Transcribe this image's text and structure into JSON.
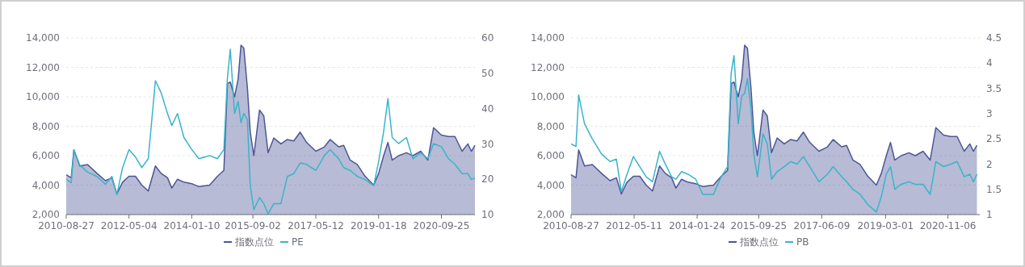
{
  "chart_data": [
    {
      "type": "line",
      "x": [
        "2010-08-27",
        "2010-10-15",
        "2010-11-10",
        "2011-01-07",
        "2011-03-25",
        "2011-06-24",
        "2011-09-16",
        "2011-11-18",
        "2012-01-06",
        "2012-03-02",
        "2012-05-04",
        "2012-07-06",
        "2012-09-07",
        "2012-11-09",
        "2013-01-18",
        "2013-03-15",
        "2013-05-17",
        "2013-06-28",
        "2013-08-23",
        "2013-10-25",
        "2014-01-10",
        "2014-03-21",
        "2014-07-04",
        "2014-09-19",
        "2014-11-21",
        "2014-12-26",
        "2015-01-23",
        "2015-03-06",
        "2015-04-10",
        "2015-05-08",
        "2015-06-05",
        "2015-07-10",
        "2015-08-07",
        "2015-09-11",
        "2015-11-06",
        "2015-12-18",
        "2016-01-29",
        "2016-03-25",
        "2016-06-03",
        "2016-08-05",
        "2016-10-07",
        "2016-12-09",
        "2017-02-10",
        "2017-05-12",
        "2017-08-04",
        "2017-09-29",
        "2017-12-22",
        "2018-02-09",
        "2018-04-13",
        "2018-06-22",
        "2018-09-07",
        "2018-11-30",
        "2019-01-18",
        "2019-03-08",
        "2019-04-19",
        "2019-05-31",
        "2019-08-02",
        "2019-10-18",
        "2019-12-20",
        "2020-03-06",
        "2020-05-15",
        "2020-07-10",
        "2020-09-25",
        "2020-12-04",
        "2021-02-05",
        "2021-04-16",
        "2021-06-11",
        "2021-07-16",
        "2021-08-20"
      ],
      "series": [
        {
          "name": "指数点位",
          "type": "area",
          "color": "#4c5597",
          "values": [
            4700,
            4500,
            6400,
            5300,
            5400,
            4800,
            4300,
            4500,
            3400,
            4200,
            4600,
            4600,
            4000,
            3600,
            5300,
            4800,
            4500,
            3800,
            4400,
            4200,
            4100,
            3900,
            4000,
            4600,
            5000,
            10900,
            11000,
            10000,
            11200,
            13500,
            13300,
            10600,
            7600,
            6000,
            9100,
            8700,
            6200,
            7200,
            6800,
            7100,
            7000,
            7600,
            6900,
            6300,
            6600,
            7100,
            6600,
            6700,
            5700,
            5400,
            4600,
            4000,
            4800,
            6000,
            6900,
            5700,
            6000,
            6200,
            6000,
            6300,
            5700,
            7900,
            7400,
            7300,
            7300,
            6300,
            6800,
            6300,
            6700
          ]
        },
        {
          "name": "PE",
          "axis": "y2",
          "color": "#3ab4ca",
          "values": [
            20,
            19,
            28.4,
            24,
            22,
            20.8,
            18.6,
            20.8,
            15.7,
            23.3,
            28.4,
            26.3,
            23.3,
            25.8,
            47.9,
            44.5,
            38.6,
            35.2,
            38.6,
            31.8,
            28.4,
            25.8,
            26.7,
            25.8,
            28.4,
            48.7,
            56.8,
            38.6,
            42,
            36,
            38.6,
            36.9,
            18.2,
            11.4,
            14.8,
            13.1,
            10.2,
            13.1,
            13.1,
            20.8,
            21.6,
            24.6,
            24.2,
            22.5,
            26.7,
            28.4,
            25.8,
            23.3,
            22.5,
            20.8,
            19.9,
            18.2,
            25,
            33.5,
            42.8,
            31.8,
            30.1,
            31.8,
            25.8,
            27.5,
            25.8,
            30.1,
            29.2,
            25.8,
            24.2,
            21.6,
            21.6,
            19.9,
            20.3
          ]
        }
      ],
      "xlim": [
        "2010-08-27",
        "2021-08-20"
      ],
      "xticks": [
        "2010-08-27",
        "2012-05-04",
        "2014-01-10",
        "2015-09-02",
        "2017-05-12",
        "2019-01-18",
        "2020-09-25"
      ],
      "ylim": [
        2000,
        14000
      ],
      "yticks": [
        {
          "value": 2000,
          "label": "2,000"
        },
        {
          "value": 4000,
          "label": "4,000"
        },
        {
          "value": 6000,
          "label": "6,000"
        },
        {
          "value": 8000,
          "label": "8,000"
        },
        {
          "value": 10000,
          "label": "10,000"
        },
        {
          "value": 12000,
          "label": "12,000"
        },
        {
          "value": 14000,
          "label": "14,000"
        }
      ],
      "y2lim": [
        10,
        60
      ],
      "y2ticks": [
        10,
        20,
        30,
        40,
        50,
        60
      ],
      "grid": "y",
      "legend": "bottom"
    },
    {
      "type": "line",
      "x": [
        "2010-08-27",
        "2010-10-15",
        "2010-11-10",
        "2011-01-07",
        "2011-03-25",
        "2011-06-24",
        "2011-09-16",
        "2011-11-18",
        "2012-01-06",
        "2012-03-02",
        "2012-05-04",
        "2012-07-06",
        "2012-09-07",
        "2012-11-09",
        "2013-01-18",
        "2013-03-15",
        "2013-05-17",
        "2013-06-28",
        "2013-08-23",
        "2013-10-25",
        "2014-01-10",
        "2014-03-21",
        "2014-07-04",
        "2014-09-19",
        "2014-11-21",
        "2014-12-26",
        "2015-01-23",
        "2015-03-06",
        "2015-04-10",
        "2015-05-08",
        "2015-06-05",
        "2015-07-10",
        "2015-08-07",
        "2015-09-11",
        "2015-11-06",
        "2015-12-18",
        "2016-01-29",
        "2016-03-25",
        "2016-06-03",
        "2016-08-05",
        "2016-10-07",
        "2016-12-09",
        "2017-02-10",
        "2017-05-12",
        "2017-08-04",
        "2017-09-29",
        "2017-12-22",
        "2018-02-09",
        "2018-04-13",
        "2018-06-22",
        "2018-09-07",
        "2018-11-30",
        "2019-01-18",
        "2019-03-08",
        "2019-04-19",
        "2019-05-31",
        "2019-08-02",
        "2019-10-18",
        "2019-12-20",
        "2020-03-06",
        "2020-05-15",
        "2020-07-10",
        "2020-09-25",
        "2020-12-04",
        "2021-02-05",
        "2021-04-16",
        "2021-06-11",
        "2021-07-16",
        "2021-08-20"
      ],
      "series": [
        {
          "name": "指数点位",
          "type": "area",
          "color": "#4c5597",
          "values": [
            4700,
            4500,
            6400,
            5300,
            5400,
            4800,
            4300,
            4500,
            3400,
            4200,
            4600,
            4600,
            4000,
            3600,
            5300,
            4800,
            4500,
            3800,
            4400,
            4200,
            4100,
            3900,
            4000,
            4600,
            5000,
            10900,
            11000,
            10000,
            11200,
            13500,
            13300,
            10600,
            7600,
            6000,
            9100,
            8700,
            6200,
            7200,
            6800,
            7100,
            7000,
            7600,
            6900,
            6300,
            6600,
            7100,
            6600,
            6700,
            5700,
            5400,
            4600,
            4000,
            4800,
            6000,
            6900,
            5700,
            6000,
            6200,
            6000,
            6300,
            5700,
            7900,
            7400,
            7300,
            7300,
            6300,
            6800,
            6300,
            6700
          ]
        },
        {
          "name": "PB",
          "axis": "y2",
          "color": "#3ab4ca",
          "values": [
            2.4,
            2.35,
            3.37,
            2.8,
            2.5,
            2.2,
            2.05,
            2.1,
            1.45,
            1.8,
            2.15,
            1.95,
            1.75,
            1.65,
            2.25,
            2,
            1.75,
            1.7,
            1.85,
            1.8,
            1.7,
            1.4,
            1.4,
            1.75,
            1.95,
            3.8,
            4.15,
            2.8,
            3.35,
            3.4,
            3.7,
            3.1,
            2.2,
            1.75,
            2.6,
            2.4,
            1.7,
            1.85,
            1.95,
            2.05,
            2,
            2.15,
            1.95,
            1.65,
            1.8,
            1.95,
            1.75,
            1.65,
            1.5,
            1.4,
            1.2,
            1.05,
            1.35,
            1.8,
            1.95,
            1.5,
            1.6,
            1.65,
            1.6,
            1.6,
            1.4,
            2.05,
            1.95,
            2,
            2.05,
            1.75,
            1.8,
            1.65,
            1.8
          ]
        }
      ],
      "xlim": [
        "2010-08-27",
        "2021-09-17"
      ],
      "xticks": [
        "2010-08-27",
        "2012-05-11",
        "2014-01-24",
        "2015-09-25",
        "2017-06-09",
        "2019-03-01",
        "2020-11-06"
      ],
      "ylim": [
        2000,
        14000
      ],
      "yticks": [
        {
          "value": 2000,
          "label": "2,000"
        },
        {
          "value": 4000,
          "label": "4,000"
        },
        {
          "value": 6000,
          "label": "6,000"
        },
        {
          "value": 8000,
          "label": "8,000"
        },
        {
          "value": 10000,
          "label": "10,000"
        },
        {
          "value": 12000,
          "label": "12,000"
        },
        {
          "value": 14000,
          "label": "14,000"
        }
      ],
      "y2lim": [
        1,
        4.5
      ],
      "y2ticks": [
        1,
        1.5,
        2,
        2.5,
        3,
        3.5,
        4,
        4.5
      ],
      "grid": "y",
      "legend": "bottom"
    }
  ]
}
